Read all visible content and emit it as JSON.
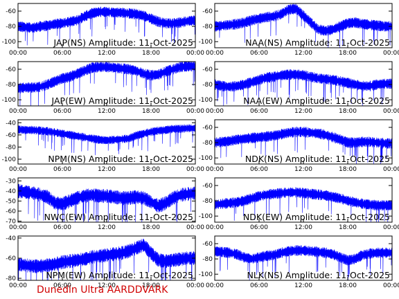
{
  "footer": "Dunedin Ultra AARDDVARK",
  "series_color": "#0000ff",
  "footer_color": "#d00000",
  "chart_data": [
    {
      "type": "line",
      "title": "JAP(NS) Amplitude: 11-Oct-2025",
      "xticks": [
        "00:00",
        "06:00",
        "12:00",
        "18:00",
        "00:00"
      ],
      "yticks": [
        -60,
        -80,
        -100
      ],
      "ylim": [
        -108,
        -50
      ],
      "x": [
        0,
        1,
        2,
        3,
        4,
        5,
        6,
        7,
        8,
        9,
        10,
        11,
        12,
        13,
        14,
        15,
        16,
        17,
        18,
        19,
        20,
        21,
        22,
        23,
        24
      ],
      "values": [
        -80,
        -81,
        -82,
        -80,
        -79,
        -77,
        -76,
        -74,
        -72,
        -67,
        -63,
        -61,
        -61,
        -62,
        -62,
        -63,
        -64,
        -66,
        -70,
        -74,
        -76,
        -76,
        -75,
        -73,
        -72
      ]
    },
    {
      "type": "line",
      "title": "NAA(NS) Amplitude: 11-Oct-2025",
      "xticks": [
        "00:00",
        "06:00",
        "12:00",
        "18:00",
        "00:00"
      ],
      "yticks": [
        -60,
        -80,
        -100
      ],
      "ylim": [
        -108,
        -50
      ],
      "x": [
        0,
        1,
        2,
        3,
        4,
        5,
        6,
        7,
        8,
        9,
        10,
        11,
        12,
        13,
        14,
        15,
        16,
        17,
        18,
        19,
        20,
        21,
        22,
        23,
        24
      ],
      "values": [
        -80,
        -79,
        -78,
        -77,
        -75,
        -72,
        -70,
        -68,
        -67,
        -64,
        -58,
        -57,
        -66,
        -75,
        -84,
        -86,
        -84,
        -80,
        -76,
        -75,
        -77,
        -78,
        -79,
        -80,
        -80
      ]
    },
    {
      "type": "line",
      "title": "JAP(EW) Amplitude: 11-Oct-2025",
      "xticks": [
        "00:00",
        "06:00",
        "12:00",
        "18:00",
        "00:00"
      ],
      "yticks": [
        -60,
        -80,
        -100
      ],
      "ylim": [
        -108,
        -50
      ],
      "x": [
        0,
        1,
        2,
        3,
        4,
        5,
        6,
        7,
        8,
        9,
        10,
        11,
        12,
        13,
        14,
        15,
        16,
        17,
        18,
        19,
        20,
        21,
        22,
        23,
        24
      ],
      "values": [
        -85,
        -84,
        -84,
        -83,
        -80,
        -76,
        -72,
        -70,
        -66,
        -62,
        -58,
        -57,
        -57,
        -58,
        -59,
        -60,
        -62,
        -66,
        -68,
        -67,
        -63,
        -60,
        -57,
        -56,
        -56
      ]
    },
    {
      "type": "line",
      "title": "NAA(EW) Amplitude: 11-Oct-2025",
      "xticks": [
        "00:00",
        "06:00",
        "12:00",
        "18:00",
        "00:00"
      ],
      "yticks": [
        -60,
        -80,
        -100
      ],
      "ylim": [
        -108,
        -50
      ],
      "x": [
        0,
        1,
        2,
        3,
        4,
        5,
        6,
        7,
        8,
        9,
        10,
        11,
        12,
        13,
        14,
        15,
        16,
        17,
        18,
        19,
        20,
        21,
        22,
        23,
        24
      ],
      "values": [
        -80,
        -82,
        -83,
        -82,
        -80,
        -77,
        -74,
        -71,
        -70,
        -68,
        -67,
        -67,
        -68,
        -70,
        -72,
        -73,
        -74,
        -76,
        -78,
        -80,
        -82,
        -82,
        -80,
        -79,
        -79
      ]
    },
    {
      "type": "line",
      "title": "NPM(NS) Amplitude: 11-Oct-2025",
      "xticks": [
        "00:00",
        "06:00",
        "12:00",
        "18:00",
        "00:00"
      ],
      "yticks": [
        -40,
        -60,
        -80,
        -100
      ],
      "ylim": [
        -108,
        -35
      ],
      "x": [
        0,
        1,
        2,
        3,
        4,
        5,
        6,
        7,
        8,
        9,
        10,
        11,
        12,
        13,
        14,
        15,
        16,
        17,
        18,
        19,
        20,
        21,
        22,
        23,
        24
      ],
      "values": [
        -51,
        -52,
        -52,
        -53,
        -54,
        -56,
        -58,
        -60,
        -62,
        -64,
        -66,
        -68,
        -69,
        -68,
        -67,
        -66,
        -61,
        -58,
        -55,
        -53,
        -52,
        -50,
        -50,
        -49,
        -49
      ]
    },
    {
      "type": "line",
      "title": "NDK(NS) Amplitude: 11-Oct-2025",
      "xticks": [
        "00:00",
        "06:00",
        "12:00",
        "18:00",
        "00:00"
      ],
      "yticks": [
        -60,
        -80,
        -100
      ],
      "ylim": [
        -108,
        -50
      ],
      "x": [
        0,
        1,
        2,
        3,
        4,
        5,
        6,
        7,
        8,
        9,
        10,
        11,
        12,
        13,
        14,
        15,
        16,
        17,
        18,
        19,
        20,
        21,
        22,
        23,
        24
      ],
      "values": [
        -80,
        -79,
        -78,
        -76,
        -75,
        -74,
        -73,
        -72,
        -71,
        -69,
        -67,
        -66,
        -66,
        -67,
        -68,
        -70,
        -73,
        -76,
        -80,
        -80,
        -79,
        -79,
        -80,
        -81,
        -81
      ]
    },
    {
      "type": "line",
      "title": "NWC(EW) Amplitude: 11-Oct-2025",
      "xticks": [
        "00:00",
        "06:00",
        "12:00",
        "18:00",
        "00:00"
      ],
      "yticks": [
        -30,
        -40,
        -50,
        -60,
        -70
      ],
      "ylim": [
        -71,
        -27
      ],
      "x": [
        0,
        1,
        2,
        3,
        4,
        5,
        6,
        7,
        8,
        9,
        10,
        11,
        12,
        13,
        14,
        15,
        16,
        17,
        18,
        19,
        20,
        21,
        22,
        23,
        24
      ],
      "values": [
        -40,
        -41,
        -42,
        -44,
        -46,
        -52,
        -53,
        -50,
        -47,
        -45,
        -44,
        -45,
        -45,
        -46,
        -47,
        -47,
        -46,
        -47,
        -51,
        -55,
        -52,
        -47,
        -44,
        -43,
        -42
      ]
    },
    {
      "type": "line",
      "title": "NDK(EW) Amplitude: 11-Oct-2025",
      "xticks": [
        "00:00",
        "06:00",
        "12:00",
        "18:00",
        "00:00"
      ],
      "yticks": [
        -60,
        -80,
        -100
      ],
      "ylim": [
        -108,
        -50
      ],
      "x": [
        0,
        1,
        2,
        3,
        4,
        5,
        6,
        7,
        8,
        9,
        10,
        11,
        12,
        13,
        14,
        15,
        16,
        17,
        18,
        19,
        20,
        21,
        22,
        23,
        24
      ],
      "values": [
        -85,
        -84,
        -83,
        -82,
        -80,
        -77,
        -74,
        -72,
        -71,
        -70,
        -69,
        -69,
        -70,
        -71,
        -72,
        -73,
        -75,
        -77,
        -80,
        -82,
        -84,
        -85,
        -86,
        -86,
        -86
      ]
    },
    {
      "type": "line",
      "title": "NPM(EW) Amplitude: 11-Oct-2025",
      "xticks": [
        "00:00",
        "06:00",
        "12:00",
        "18:00",
        "00:00"
      ],
      "yticks": [
        -40,
        -60,
        -80
      ],
      "ylim": [
        -82,
        -38
      ],
      "x": [
        0,
        1,
        2,
        3,
        4,
        5,
        6,
        7,
        8,
        9,
        10,
        11,
        12,
        13,
        14,
        15,
        16,
        17,
        18,
        19,
        20,
        21,
        22,
        23,
        24
      ],
      "values": [
        -66,
        -67,
        -68,
        -68,
        -67,
        -66,
        -64,
        -63,
        -62,
        -61,
        -59,
        -58,
        -57,
        -56,
        -55,
        -53,
        -50,
        -47,
        -55,
        -62,
        -63,
        -62,
        -61,
        -60,
        -60
      ]
    },
    {
      "type": "line",
      "title": "NLK(NS) Amplitude: 11-Oct-2025",
      "xticks": [
        "00:00",
        "06:00",
        "12:00",
        "18:00",
        "00:00"
      ],
      "yticks": [
        -60,
        -80,
        -100
      ],
      "ylim": [
        -108,
        -50
      ],
      "x": [
        0,
        1,
        2,
        3,
        4,
        5,
        6,
        7,
        8,
        9,
        10,
        11,
        12,
        13,
        14,
        15,
        16,
        17,
        18,
        19,
        20,
        21,
        22,
        23,
        24
      ],
      "values": [
        -70,
        -71,
        -72,
        -74,
        -78,
        -80,
        -78,
        -76,
        -75,
        -72,
        -70,
        -69,
        -69,
        -70,
        -71,
        -72,
        -74,
        -78,
        -82,
        -80,
        -75,
        -73,
        -72,
        -72,
        -72
      ]
    }
  ]
}
